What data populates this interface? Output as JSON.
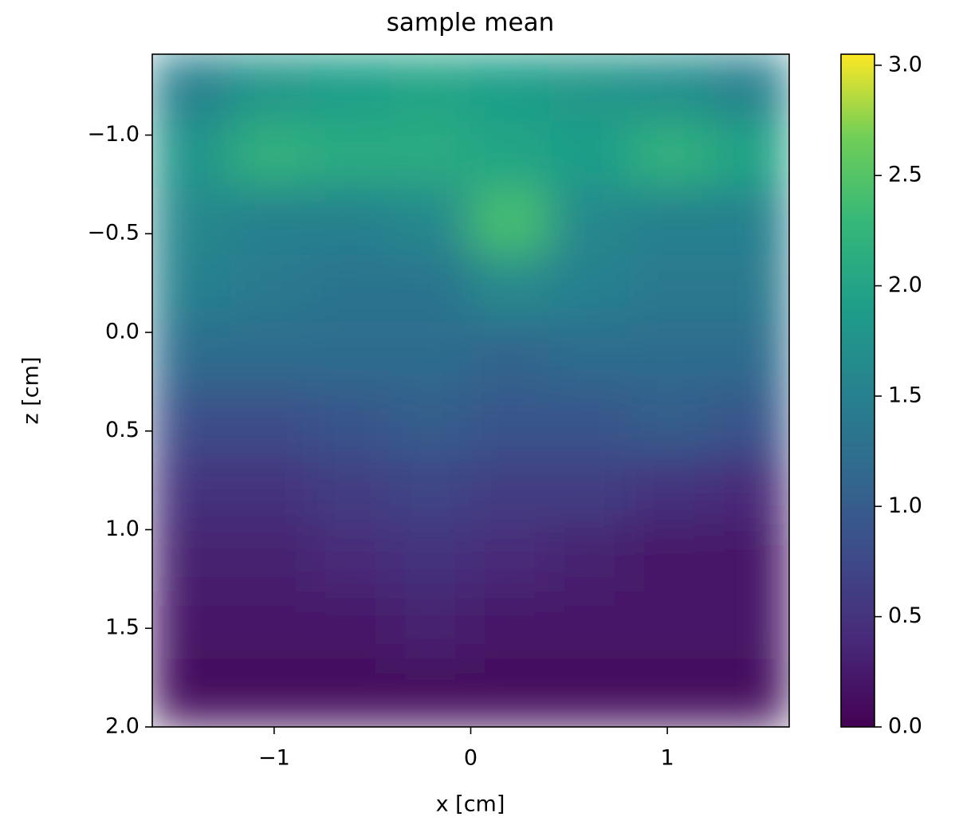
{
  "chart_data": {
    "type": "heatmap",
    "title": "sample mean",
    "x_label": "x [cm]",
    "y_label": "z [cm]",
    "xlim": [
      -1.62,
      1.62
    ],
    "ylim": [
      2.0,
      -1.41
    ],
    "xticks": [
      {
        "value": -1,
        "label": "−1"
      },
      0,
      1
    ],
    "yticks": [
      {
        "value": -1.0,
        "label": "−1.0"
      },
      {
        "value": -0.5,
        "label": "−0.5"
      },
      {
        "value": 0.0,
        "label": "0.0"
      },
      {
        "value": 0.5,
        "label": "0.5"
      },
      {
        "value": 1.0,
        "label": "1.0"
      },
      {
        "value": 1.5,
        "label": "1.5"
      },
      {
        "value": 2.0,
        "label": "2.0"
      }
    ],
    "colormap": "viridis",
    "colorbar_lim": [
      0,
      3.05
    ],
    "colorbar_ticks": [
      {
        "value": 0.0,
        "label": "0.0"
      },
      {
        "value": 0.5,
        "label": "0.5"
      },
      {
        "value": 1.0,
        "label": "1.0"
      },
      {
        "value": 1.5,
        "label": "1.5"
      },
      {
        "value": 2.0,
        "label": "2.0"
      },
      {
        "value": 2.5,
        "label": "2.5"
      },
      {
        "value": 3.0,
        "label": "3.0"
      }
    ],
    "values": [
      [
        1.5,
        1.8,
        1.9,
        2.0,
        1.9,
        1.8,
        1.7,
        1.5
      ],
      [
        1.8,
        2.2,
        2.1,
        2.1,
        2.0,
        1.9,
        2.2,
        2.0
      ],
      [
        1.6,
        1.5,
        1.5,
        1.6,
        2.4,
        1.6,
        1.5,
        1.5
      ],
      [
        1.5,
        1.4,
        1.3,
        1.3,
        1.6,
        1.5,
        1.4,
        1.4
      ],
      [
        1.2,
        1.2,
        1.2,
        1.2,
        1.1,
        1.2,
        1.2,
        1.2
      ],
      [
        0.8,
        0.8,
        0.9,
        1.0,
        0.9,
        0.9,
        1.0,
        0.9
      ],
      [
        0.5,
        0.5,
        0.6,
        0.7,
        0.6,
        0.6,
        0.5,
        0.4
      ],
      [
        0.3,
        0.3,
        0.4,
        0.5,
        0.4,
        0.3,
        0.2,
        0.2
      ],
      [
        0.2,
        0.2,
        0.2,
        0.3,
        0.2,
        0.2,
        0.2,
        0.2
      ],
      [
        0.1,
        0.1,
        0.1,
        0.1,
        0.1,
        0.1,
        0.1,
        0.1
      ]
    ]
  }
}
